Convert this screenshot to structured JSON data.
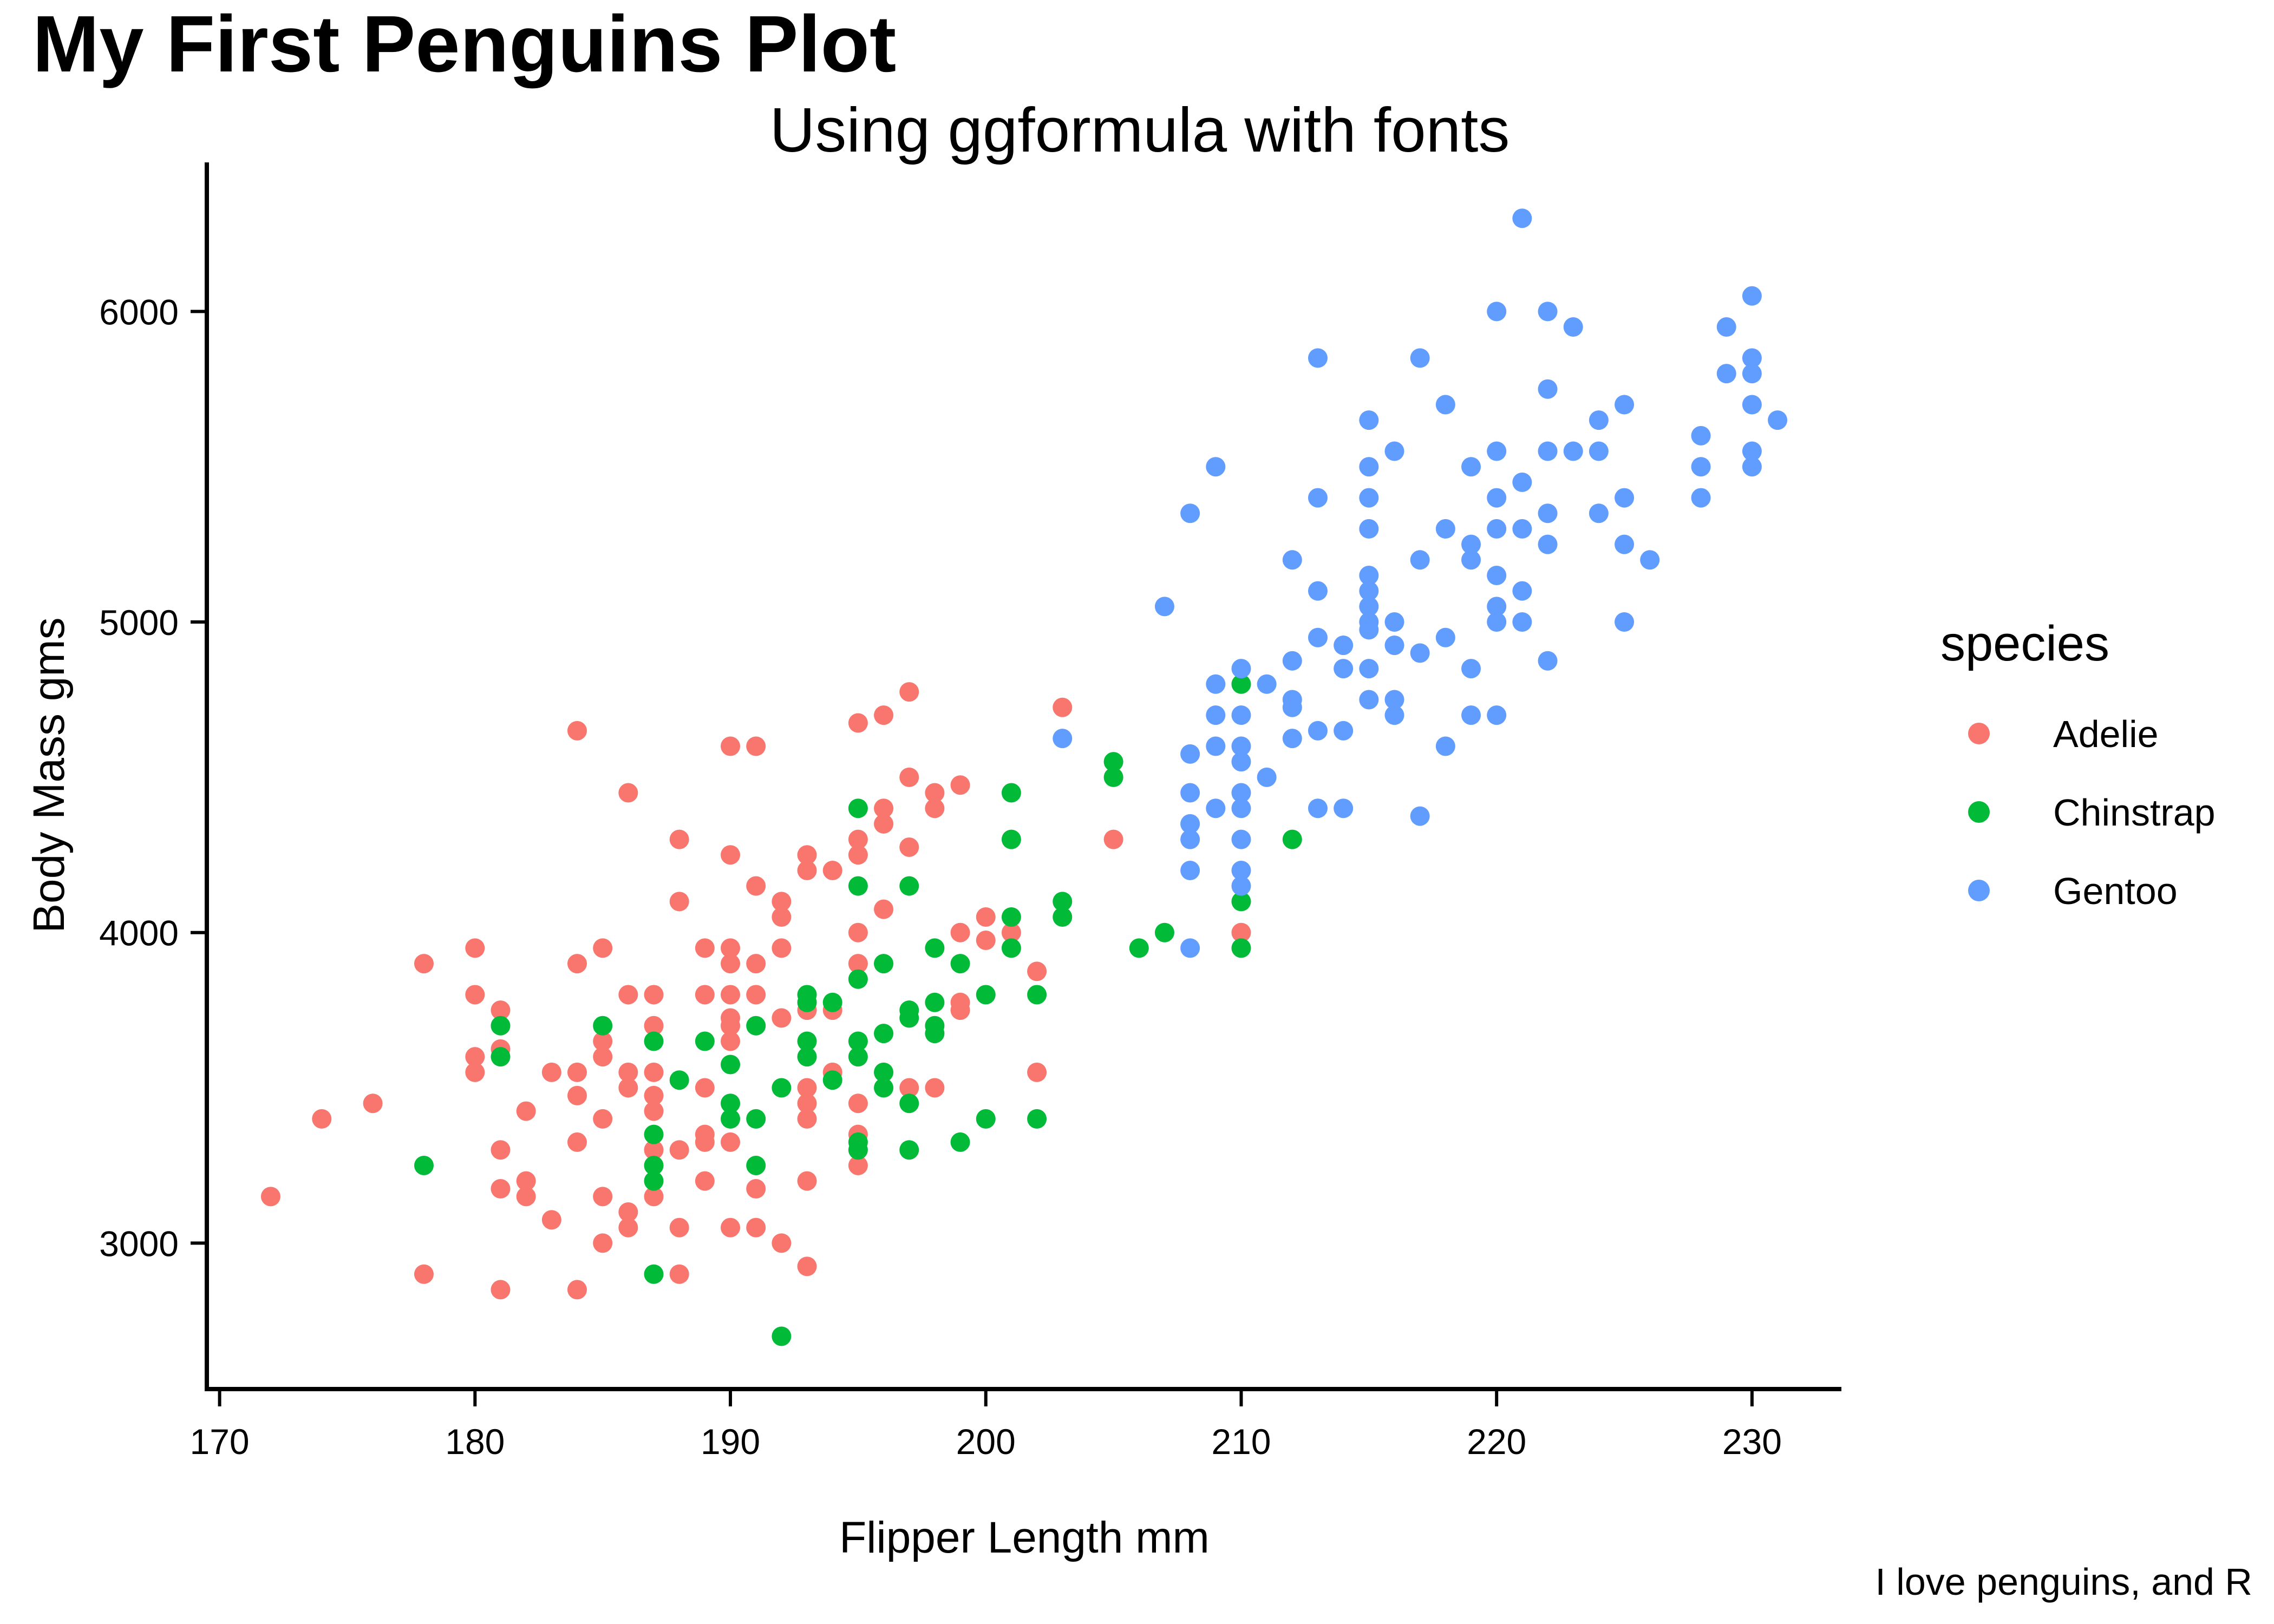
{
  "chart_data": {
    "type": "scatter",
    "title": "My First Penguins Plot",
    "subtitle": "Using ggformula with fonts",
    "xlabel": "Flipper Length mm",
    "ylabel": "Body Mass gms",
    "caption": "I love penguins, and R",
    "legend_title": "species",
    "legend_position": "right",
    "grid": false,
    "xlim": [
      169.5,
      233.5
    ],
    "ylim": [
      2530,
      6480
    ],
    "xticks": [
      170,
      180,
      190,
      200,
      210,
      220,
      230
    ],
    "yticks": [
      3000,
      4000,
      5000,
      6000
    ],
    "series": [
      {
        "name": "Adelie",
        "color": "#F8766D",
        "points": [
          [
            172,
            3150
          ],
          [
            174,
            3400
          ],
          [
            176,
            3450
          ],
          [
            178,
            3900
          ],
          [
            178,
            2900
          ],
          [
            180,
            3950
          ],
          [
            180,
            3800
          ],
          [
            180,
            3600
          ],
          [
            180,
            3550
          ],
          [
            181,
            3750
          ],
          [
            181,
            3625
          ],
          [
            181,
            3300
          ],
          [
            181,
            3175
          ],
          [
            181,
            2850
          ],
          [
            182,
            3425
          ],
          [
            182,
            3200
          ],
          [
            182,
            3150
          ],
          [
            183,
            3550
          ],
          [
            183,
            3075
          ],
          [
            184,
            4650
          ],
          [
            184,
            3900
          ],
          [
            184,
            3550
          ],
          [
            184,
            3475
          ],
          [
            184,
            3325
          ],
          [
            184,
            2850
          ],
          [
            185,
            3950
          ],
          [
            185,
            3650
          ],
          [
            185,
            3600
          ],
          [
            185,
            3400
          ],
          [
            185,
            3150
          ],
          [
            185,
            3000
          ],
          [
            186,
            4450
          ],
          [
            186,
            3800
          ],
          [
            186,
            3550
          ],
          [
            186,
            3500
          ],
          [
            186,
            3100
          ],
          [
            186,
            3050
          ],
          [
            187,
            3800
          ],
          [
            187,
            3700
          ],
          [
            187,
            3550
          ],
          [
            187,
            3475
          ],
          [
            187,
            3425
          ],
          [
            187,
            3300
          ],
          [
            187,
            3150
          ],
          [
            188,
            4300
          ],
          [
            188,
            4100
          ],
          [
            188,
            3300
          ],
          [
            188,
            3050
          ],
          [
            188,
            2900
          ],
          [
            189,
            3950
          ],
          [
            189,
            3800
          ],
          [
            189,
            3500
          ],
          [
            189,
            3350
          ],
          [
            189,
            3325
          ],
          [
            189,
            3200
          ],
          [
            190,
            4600
          ],
          [
            190,
            4250
          ],
          [
            190,
            3950
          ],
          [
            190,
            3900
          ],
          [
            190,
            3800
          ],
          [
            190,
            3725
          ],
          [
            190,
            3700
          ],
          [
            190,
            3650
          ],
          [
            190,
            3325
          ],
          [
            190,
            3050
          ],
          [
            191,
            4600
          ],
          [
            191,
            4150
          ],
          [
            191,
            3900
          ],
          [
            191,
            3800
          ],
          [
            191,
            3175
          ],
          [
            191,
            3050
          ],
          [
            192,
            4100
          ],
          [
            192,
            4050
          ],
          [
            192,
            3950
          ],
          [
            192,
            3725
          ],
          [
            192,
            3000
          ],
          [
            193,
            4250
          ],
          [
            193,
            4200
          ],
          [
            193,
            3750
          ],
          [
            193,
            3500
          ],
          [
            193,
            3450
          ],
          [
            193,
            3400
          ],
          [
            193,
            3200
          ],
          [
            193,
            2925
          ],
          [
            194,
            4200
          ],
          [
            194,
            3750
          ],
          [
            194,
            3550
          ],
          [
            195,
            4675
          ],
          [
            195,
            4300
          ],
          [
            195,
            4250
          ],
          [
            195,
            4000
          ],
          [
            195,
            3900
          ],
          [
            195,
            3450
          ],
          [
            195,
            3350
          ],
          [
            195,
            3250
          ],
          [
            196,
            4700
          ],
          [
            196,
            4400
          ],
          [
            196,
            4350
          ],
          [
            196,
            4075
          ],
          [
            197,
            4775
          ],
          [
            197,
            4500
          ],
          [
            197,
            4275
          ],
          [
            197,
            3500
          ],
          [
            198,
            4450
          ],
          [
            198,
            4400
          ],
          [
            198,
            3500
          ],
          [
            199,
            4475
          ],
          [
            199,
            4000
          ],
          [
            199,
            3775
          ],
          [
            199,
            3750
          ],
          [
            200,
            4050
          ],
          [
            200,
            3975
          ],
          [
            201,
            4000
          ],
          [
            202,
            3875
          ],
          [
            202,
            3550
          ],
          [
            203,
            4725
          ],
          [
            205,
            4300
          ],
          [
            210,
            4000
          ]
        ]
      },
      {
        "name": "Chinstrap",
        "color": "#00BA38",
        "points": [
          [
            178,
            3250
          ],
          [
            181,
            3700
          ],
          [
            181,
            3600
          ],
          [
            185,
            3700
          ],
          [
            187,
            3650
          ],
          [
            187,
            3350
          ],
          [
            187,
            3250
          ],
          [
            187,
            3200
          ],
          [
            187,
            2900
          ],
          [
            188,
            3525
          ],
          [
            189,
            3650
          ],
          [
            190,
            3575
          ],
          [
            190,
            3450
          ],
          [
            190,
            3400
          ],
          [
            191,
            3700
          ],
          [
            191,
            3400
          ],
          [
            191,
            3250
          ],
          [
            192,
            3500
          ],
          [
            192,
            2700
          ],
          [
            193,
            3800
          ],
          [
            193,
            3775
          ],
          [
            193,
            3650
          ],
          [
            193,
            3600
          ],
          [
            194,
            3775
          ],
          [
            194,
            3525
          ],
          [
            195,
            4400
          ],
          [
            195,
            4150
          ],
          [
            195,
            3850
          ],
          [
            195,
            3650
          ],
          [
            195,
            3600
          ],
          [
            195,
            3325
          ],
          [
            195,
            3300
          ],
          [
            196,
            3900
          ],
          [
            196,
            3675
          ],
          [
            196,
            3550
          ],
          [
            196,
            3500
          ],
          [
            197,
            4150
          ],
          [
            197,
            3750
          ],
          [
            197,
            3725
          ],
          [
            197,
            3450
          ],
          [
            197,
            3300
          ],
          [
            198,
            3950
          ],
          [
            198,
            3775
          ],
          [
            198,
            3700
          ],
          [
            198,
            3675
          ],
          [
            199,
            3900
          ],
          [
            199,
            3325
          ],
          [
            200,
            3800
          ],
          [
            200,
            3400
          ],
          [
            201,
            4450
          ],
          [
            201,
            4300
          ],
          [
            201,
            4050
          ],
          [
            201,
            3950
          ],
          [
            202,
            3800
          ],
          [
            202,
            3400
          ],
          [
            203,
            4100
          ],
          [
            203,
            4050
          ],
          [
            205,
            4550
          ],
          [
            205,
            4500
          ],
          [
            206,
            3950
          ],
          [
            207,
            4000
          ],
          [
            210,
            4800
          ],
          [
            210,
            4100
          ],
          [
            210,
            3950
          ],
          [
            212,
            4300
          ]
        ]
      },
      {
        "name": "Gentoo",
        "color": "#619CFF",
        "points": [
          [
            203,
            4625
          ],
          [
            207,
            5050
          ],
          [
            208,
            5350
          ],
          [
            208,
            4575
          ],
          [
            208,
            4450
          ],
          [
            208,
            4350
          ],
          [
            208,
            4300
          ],
          [
            208,
            4200
          ],
          [
            208,
            3950
          ],
          [
            209,
            5500
          ],
          [
            209,
            4800
          ],
          [
            209,
            4700
          ],
          [
            209,
            4600
          ],
          [
            209,
            4400
          ],
          [
            210,
            4850
          ],
          [
            210,
            4700
          ],
          [
            210,
            4600
          ],
          [
            210,
            4550
          ],
          [
            210,
            4450
          ],
          [
            210,
            4400
          ],
          [
            210,
            4300
          ],
          [
            210,
            4200
          ],
          [
            210,
            4150
          ],
          [
            211,
            4800
          ],
          [
            211,
            4500
          ],
          [
            212,
            5200
          ],
          [
            212,
            4875
          ],
          [
            212,
            4750
          ],
          [
            212,
            4725
          ],
          [
            212,
            4625
          ],
          [
            213,
            5850
          ],
          [
            213,
            5400
          ],
          [
            213,
            5100
          ],
          [
            213,
            4950
          ],
          [
            213,
            4650
          ],
          [
            213,
            4400
          ],
          [
            214,
            4925
          ],
          [
            214,
            4850
          ],
          [
            214,
            4650
          ],
          [
            214,
            4400
          ],
          [
            215,
            5650
          ],
          [
            215,
            5500
          ],
          [
            215,
            5400
          ],
          [
            215,
            5300
          ],
          [
            215,
            5150
          ],
          [
            215,
            5100
          ],
          [
            215,
            5050
          ],
          [
            215,
            5000
          ],
          [
            215,
            4975
          ],
          [
            215,
            4850
          ],
          [
            215,
            4750
          ],
          [
            216,
            5550
          ],
          [
            216,
            5000
          ],
          [
            216,
            4925
          ],
          [
            216,
            4750
          ],
          [
            216,
            4700
          ],
          [
            217,
            5850
          ],
          [
            217,
            5200
          ],
          [
            217,
            4900
          ],
          [
            217,
            4375
          ],
          [
            218,
            5700
          ],
          [
            218,
            5300
          ],
          [
            218,
            4950
          ],
          [
            218,
            4600
          ],
          [
            219,
            5500
          ],
          [
            219,
            5250
          ],
          [
            219,
            5200
          ],
          [
            219,
            4850
          ],
          [
            219,
            4700
          ],
          [
            220,
            6000
          ],
          [
            220,
            5550
          ],
          [
            220,
            5400
          ],
          [
            220,
            5300
          ],
          [
            220,
            5150
          ],
          [
            220,
            5050
          ],
          [
            220,
            5000
          ],
          [
            220,
            4700
          ],
          [
            221,
            6300
          ],
          [
            221,
            5450
          ],
          [
            221,
            5300
          ],
          [
            221,
            5100
          ],
          [
            221,
            5000
          ],
          [
            222,
            6000
          ],
          [
            222,
            5750
          ],
          [
            222,
            5550
          ],
          [
            222,
            5350
          ],
          [
            222,
            5250
          ],
          [
            222,
            4875
          ],
          [
            223,
            5950
          ],
          [
            223,
            5550
          ],
          [
            224,
            5650
          ],
          [
            224,
            5550
          ],
          [
            224,
            5350
          ],
          [
            225,
            5700
          ],
          [
            225,
            5400
          ],
          [
            225,
            5250
          ],
          [
            225,
            5000
          ],
          [
            226,
            5200
          ],
          [
            228,
            5600
          ],
          [
            228,
            5500
          ],
          [
            228,
            5400
          ],
          [
            229,
            5950
          ],
          [
            229,
            5800
          ],
          [
            230,
            6050
          ],
          [
            230,
            5850
          ],
          [
            230,
            5800
          ],
          [
            230,
            5700
          ],
          [
            230,
            5550
          ],
          [
            230,
            5500
          ],
          [
            231,
            5650
          ]
        ]
      }
    ]
  }
}
